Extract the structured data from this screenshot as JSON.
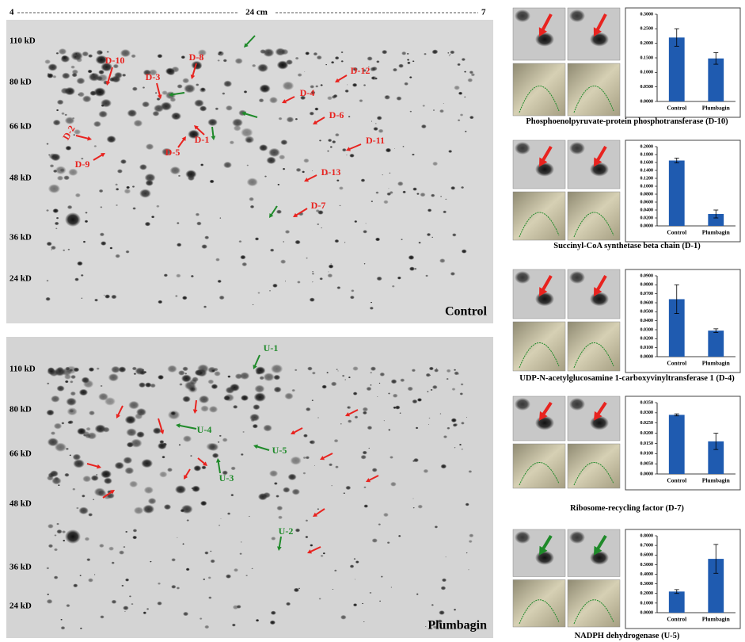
{
  "gels": {
    "scale": {
      "left": "4",
      "middle": "24 cm",
      "right": "7"
    },
    "control": {
      "name": "Control",
      "mw": [
        "110 kD",
        "80 kD",
        "66 kD",
        "48 kD",
        "36 kD",
        "24 kD"
      ],
      "spots": [
        "D-10",
        "D-8",
        "D-3",
        "D-12",
        "D-4",
        "D-6",
        "D-2",
        "D-5",
        "D-1",
        "D-11",
        "D-9",
        "D-13",
        "D-7"
      ]
    },
    "plumbagin": {
      "name": "Plumbagin",
      "mw": [
        "110 kD",
        "80 kD",
        "66 kD",
        "48 kD",
        "36 kD",
        "24 kD"
      ],
      "spots": [
        "U-1",
        "U-4",
        "U-5",
        "U-3",
        "U-2"
      ]
    }
  },
  "chart_data": [
    {
      "type": "bar",
      "title": "Phosphoenolpyruvate-protein phosphotransferase (D-10)",
      "categories": [
        "Control",
        "Plumbagin"
      ],
      "values": [
        0.22,
        0.148
      ],
      "errors": [
        0.03,
        0.02
      ],
      "color": "#1f5bb0",
      "ylim": [
        0,
        0.3
      ],
      "yticks": [
        {
          "value": 0,
          "label": "0.0000"
        },
        {
          "value": 0.05,
          "label": "0.0500"
        },
        {
          "value": 0.1,
          "label": "0.1000"
        },
        {
          "value": 0.15,
          "label": "0.1500"
        },
        {
          "value": 0.2,
          "label": "0.2000"
        },
        {
          "value": 0.25,
          "label": "0.2500"
        },
        {
          "value": 0.3,
          "label": "0.3000"
        }
      ]
    },
    {
      "type": "bar",
      "title": "Succinyl-CoA synthetase beta chain (D-1)",
      "categories": [
        "Control",
        "Plumbagin"
      ],
      "values": [
        0.165,
        0.03
      ],
      "errors": [
        0.006,
        0.01
      ],
      "color": "#1f5bb0",
      "ylim": [
        0,
        0.2
      ],
      "yticks": [
        {
          "value": 0,
          "label": "0.0000"
        },
        {
          "value": 0.02,
          "label": "0.0200"
        },
        {
          "value": 0.04,
          "label": "0.0400"
        },
        {
          "value": 0.06,
          "label": "0.0600"
        },
        {
          "value": 0.08,
          "label": "0.0800"
        },
        {
          "value": 0.1,
          "label": "0.1000"
        },
        {
          "value": 0.12,
          "label": "0.1200"
        },
        {
          "value": 0.14,
          "label": "0.1400"
        },
        {
          "value": 0.16,
          "label": "0.1600"
        },
        {
          "value": 0.18,
          "label": "0.1800"
        },
        {
          "value": 0.2,
          "label": "0.2000"
        }
      ]
    },
    {
      "type": "bar",
      "title": "UDP-N-acetylglucosamine 1-carboxyvinyltransferase 1 (D-4)",
      "categories": [
        "Control",
        "Plumbagin"
      ],
      "values": [
        0.064,
        0.029
      ],
      "errors": [
        0.016,
        0.002
      ],
      "color": "#1f5bb0",
      "ylim": [
        0,
        0.09
      ],
      "yticks": [
        {
          "value": 0,
          "label": "0.0000"
        },
        {
          "value": 0.01,
          "label": "0.0100"
        },
        {
          "value": 0.02,
          "label": "0.0200"
        },
        {
          "value": 0.03,
          "label": "0.0300"
        },
        {
          "value": 0.04,
          "label": "0.0400"
        },
        {
          "value": 0.05,
          "label": "0.0500"
        },
        {
          "value": 0.06,
          "label": "0.0600"
        },
        {
          "value": 0.07,
          "label": "0.0700"
        },
        {
          "value": 0.08,
          "label": "0.0800"
        },
        {
          "value": 0.09,
          "label": "0.0900"
        }
      ]
    },
    {
      "type": "bar",
      "title": "Ribosome-recycling factor (D-7)",
      "categories": [
        "Control",
        "Plumbagin"
      ],
      "values": [
        0.029,
        0.016
      ],
      "errors": [
        0.0005,
        0.004
      ],
      "color": "#1f5bb0",
      "ylim": [
        0,
        0.035
      ],
      "yticks": [
        {
          "value": 0,
          "label": "0.0000"
        },
        {
          "value": 0.005,
          "label": "0.0050"
        },
        {
          "value": 0.01,
          "label": "0.0100"
        },
        {
          "value": 0.015,
          "label": "0.0150"
        },
        {
          "value": 0.02,
          "label": "0.0200"
        },
        {
          "value": 0.025,
          "label": "0.0250"
        },
        {
          "value": 0.03,
          "label": "0.0300"
        },
        {
          "value": 0.035,
          "label": "0.0350"
        }
      ]
    },
    {
      "type": "bar",
      "title": "NADPH dehydrogenase (U-5)",
      "categories": [
        "Control",
        "Plumbagin"
      ],
      "values": [
        0.22,
        0.56
      ],
      "errors": [
        0.02,
        0.15
      ],
      "color": "#1f5bb0",
      "ylim": [
        0,
        0.8
      ],
      "yticks": [
        {
          "value": 0,
          "label": "0.0000"
        },
        {
          "value": 0.1,
          "label": "0.1000"
        },
        {
          "value": 0.2,
          "label": "0.2000"
        },
        {
          "value": 0.3,
          "label": "0.3000"
        },
        {
          "value": 0.4,
          "label": "0.4000"
        },
        {
          "value": 0.5,
          "label": "0.5000"
        },
        {
          "value": 0.6,
          "label": "0.6000"
        },
        {
          "value": 0.7,
          "label": "0.7000"
        },
        {
          "value": 0.8,
          "label": "0.8000"
        }
      ]
    }
  ]
}
